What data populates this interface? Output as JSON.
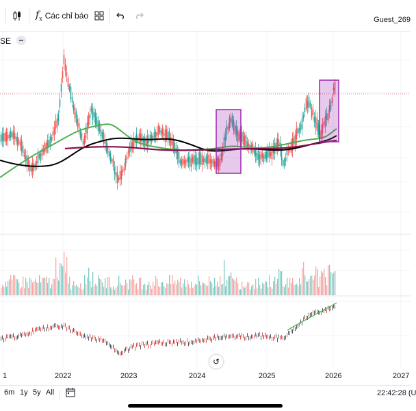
{
  "toolbar": {
    "indicators_label": "Các chỉ báo",
    "icons": [
      "candles-icon",
      "fx-icon",
      "templates-icon",
      "undo-icon",
      "redo-icon"
    ]
  },
  "user": {
    "name": "Guest_269"
  },
  "legend": {
    "symbol_fragment": "SE"
  },
  "bottom": {
    "ranges": [
      "6m",
      "1y",
      "5y",
      "All"
    ],
    "time": "22:42:28 (U"
  },
  "colors": {
    "up": "#26a69a",
    "down": "#ef5350",
    "ma_green": "#4caf50",
    "ma_black": "#000000",
    "ma_purple": "#880e4f",
    "highlight": "#9c27b0",
    "price_line": "#ef5350"
  },
  "chart_data": {
    "type": "candlestick",
    "x_ticks": [
      "1",
      "2022",
      "2023",
      "2024",
      "2025",
      "2026",
      "2027"
    ],
    "series": [
      {
        "name": "",
        "kind": "price"
      },
      {
        "name": "",
        "kind": "volume"
      },
      {
        "name": "",
        "kind": "comparison"
      }
    ],
    "grid": true
  }
}
